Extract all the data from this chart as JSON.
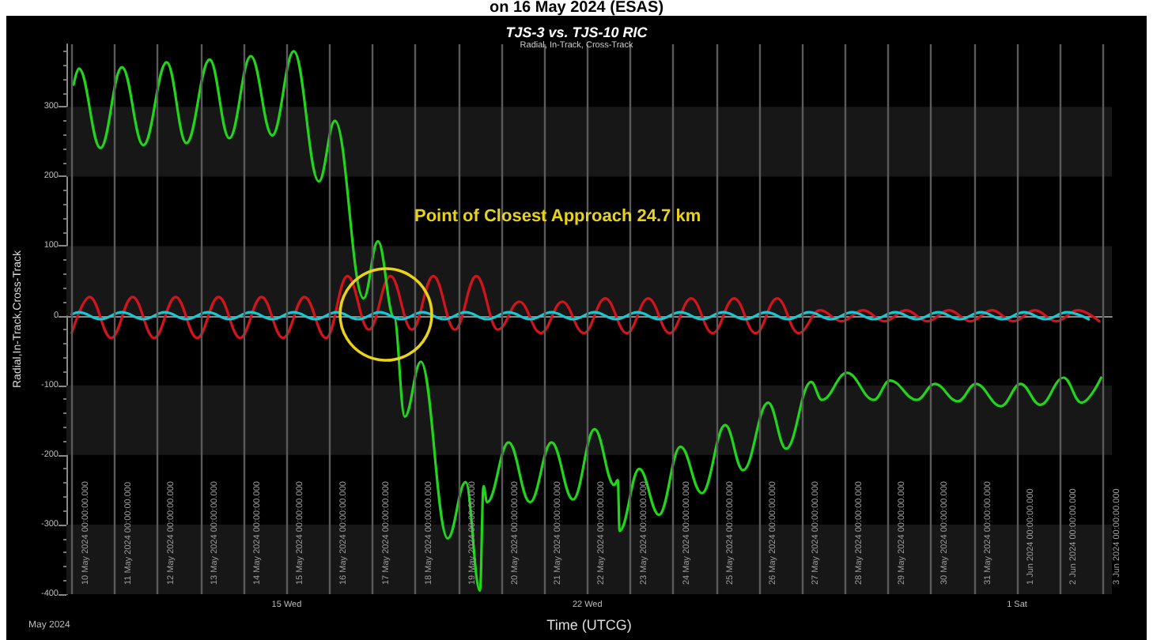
{
  "chart_data": {
    "type": "line",
    "title": "TJS-3 vs. TJS-10 RIC",
    "subtitle": "Radial, In-Track, Cross-Track",
    "xlabel": "Time (UTCG)",
    "ylabel": "Radial,In-Track,Cross-Track",
    "annotations": [
      "on 16 May 2024 (ESAS)",
      "May 2024",
      "Point of Closest Approach 24.7 km"
    ],
    "bands": [
      {
        "axis": "y",
        "from": -400,
        "to": -300,
        "color": "#171717"
      },
      {
        "axis": "y",
        "from": -200,
        "to": -100,
        "color": "#171717"
      },
      {
        "axis": "y",
        "from": 0,
        "to": 100,
        "color": "#171717"
      },
      {
        "axis": "y",
        "from": 200,
        "to": 300,
        "color": "#171717"
      }
    ],
    "xlim": [
      "2024-05-09T21:00",
      "2024-06-03T05:00"
    ],
    "ylim": [
      -400,
      390
    ],
    "xticks": [
      {
        "value": "2024-05-10",
        "label": null
      },
      {
        "value": "2024-05-11",
        "label": null
      },
      {
        "value": "2024-05-12",
        "label": null
      },
      {
        "value": "2024-05-13",
        "label": null
      },
      {
        "value": "2024-05-14",
        "label": null
      },
      {
        "value": "2024-05-15",
        "label": "15 Wed"
      },
      {
        "value": "2024-05-16",
        "label": null
      },
      {
        "value": "2024-05-17",
        "label": null
      },
      {
        "value": "2024-05-18",
        "label": null
      },
      {
        "value": "2024-05-19",
        "label": null
      },
      {
        "value": "2024-05-20",
        "label": null
      },
      {
        "value": "2024-05-21",
        "label": null
      },
      {
        "value": "2024-05-22",
        "label": "22 Wed"
      },
      {
        "value": "2024-05-23",
        "label": null
      },
      {
        "value": "2024-05-24",
        "label": null
      },
      {
        "value": "2024-05-25",
        "label": null
      },
      {
        "value": "2024-05-26",
        "label": null
      },
      {
        "value": "2024-05-27",
        "label": null
      },
      {
        "value": "2024-05-28",
        "label": null
      },
      {
        "value": "2024-05-29",
        "label": null
      },
      {
        "value": "2024-05-30",
        "label": null
      },
      {
        "value": "2024-05-31",
        "label": null
      },
      {
        "value": "2024-06-01",
        "label": "1 Sat"
      },
      {
        "value": "2024-06-02",
        "label": null
      },
      {
        "value": "2024-06-03",
        "label": null
      }
    ],
    "yticks": [
      -400,
      -300,
      -200,
      -100,
      0,
      100,
      200,
      300
    ],
    "series": [
      {
        "color": "#d4141c",
        "x": [
          "2024-05-10T00:00",
          "2024-05-10T10:00",
          "2024-05-10T22:00",
          "2024-05-11T10:00",
          "2024-05-11T22:00",
          "2024-05-12T10:00",
          "2024-05-12T22:00",
          "2024-05-13T10:00",
          "2024-05-13T22:00",
          "2024-05-14T10:00",
          "2024-05-14T22:00",
          "2024-05-15T10:00",
          "2024-05-15T22:00",
          "2024-05-16T10:00",
          "2024-05-16T22:00",
          "2024-05-17T10:00",
          "2024-05-17T22:00",
          "2024-05-18T10:00",
          "2024-05-18T22:00",
          "2024-05-19T10:00",
          "2024-05-19T22:00",
          "2024-05-20T10:00",
          "2024-05-20T22:00",
          "2024-05-21T10:00",
          "2024-05-21T22:00",
          "2024-05-22T10:00",
          "2024-05-22T22:00",
          "2024-05-23T10:00",
          "2024-05-23T22:00",
          "2024-05-24T10:00",
          "2024-05-24T22:00",
          "2024-05-25T10:00",
          "2024-05-25T22:00",
          "2024-05-26T10:00",
          "2024-05-26T22:00",
          "2024-05-27T10:00",
          "2024-05-27T22:00",
          "2024-05-28T10:00",
          "2024-05-28T22:00",
          "2024-05-29T10:00",
          "2024-05-29T22:00",
          "2024-05-30T10:00",
          "2024-05-30T22:00",
          "2024-05-31T10:00",
          "2024-05-31T22:00",
          "2024-06-01T10:00",
          "2024-06-01T22:00",
          "2024-06-02T10:00",
          "2024-06-02T22:00"
        ],
        "values": [
          -25,
          27,
          -32,
          27,
          -32,
          27,
          -32,
          27,
          -32,
          27,
          -32,
          27,
          -32,
          57,
          -20,
          57,
          -20,
          57,
          -20,
          57,
          -20,
          20,
          -25,
          20,
          -25,
          25,
          -25,
          25,
          -25,
          25,
          -25,
          25,
          -25,
          25,
          -25,
          8,
          -8,
          8,
          -8,
          8,
          -8,
          8,
          -8,
          8,
          -8,
          8,
          -8,
          8,
          -8
        ]
      },
      {
        "color": "#21d51a",
        "x": [
          "2024-05-10T01:00",
          "2024-05-10T04:00",
          "2024-05-10T16:00",
          "2024-05-11T04:00",
          "2024-05-11T16:00",
          "2024-05-12T05:00",
          "2024-05-12T16:00",
          "2024-05-13T05:00",
          "2024-05-13T16:00",
          "2024-05-14T04:00",
          "2024-05-14T16:00",
          "2024-05-15T04:00",
          "2024-05-15T18:00",
          "2024-05-16T03:00",
          "2024-05-16T19:00",
          "2024-05-17T03:00",
          "2024-05-17T12:00",
          "2024-05-17T18:00",
          "2024-05-18T03:00",
          "2024-05-18T18:00",
          "2024-05-19T04:00",
          "2024-05-19T12:00",
          "2024-05-19T14:00",
          "2024-05-19T16:00",
          "2024-05-20T04:00",
          "2024-05-20T16:00",
          "2024-05-21T04:00",
          "2024-05-21T16:00",
          "2024-05-22T04:00",
          "2024-05-22T15:00",
          "2024-05-22T17:00",
          "2024-05-22T18:00",
          "2024-05-23T05:00",
          "2024-05-23T16:00",
          "2024-05-24T04:00",
          "2024-05-24T16:00",
          "2024-05-25T05:00",
          "2024-05-25T15:00",
          "2024-05-26T05:00",
          "2024-05-26T15:00",
          "2024-05-27T05:00",
          "2024-05-27T11:00",
          "2024-05-28T01:00",
          "2024-05-28T16:00",
          "2024-05-29T01:00",
          "2024-05-29T16:00",
          "2024-05-30T02:00",
          "2024-05-30T15:00",
          "2024-05-31T01:00",
          "2024-05-31T15:00",
          "2024-06-01T02:00",
          "2024-06-01T13:00",
          "2024-06-02T02:00",
          "2024-06-02T12:00",
          "2024-06-02T23:00"
        ],
        "values": [
          332,
          355,
          241,
          357,
          245,
          364,
          248,
          368,
          255,
          373,
          259,
          380,
          193,
          280,
          25,
          107,
          -2,
          -145,
          -66,
          -320,
          -239,
          -395,
          -245,
          -268,
          -182,
          -268,
          -182,
          -264,
          -163,
          -243,
          -236,
          -309,
          -220,
          -286,
          -188,
          -255,
          -157,
          -222,
          -125,
          -191,
          -95,
          -121,
          -82,
          -121,
          -93,
          -121,
          -98,
          -123,
          -98,
          -130,
          -98,
          -128,
          -89,
          -125,
          -89
        ]
      },
      {
        "color": "#17c9d2",
        "x": [
          "2024-05-10T00:00",
          "2024-05-10T04:00",
          "2024-05-10T16:00",
          "2024-05-11T04:00",
          "2024-05-11T16:00",
          "2024-05-12T04:00",
          "2024-05-12T16:00",
          "2024-05-13T04:00",
          "2024-05-13T16:00",
          "2024-05-14T04:00",
          "2024-05-14T16:00",
          "2024-05-15T04:00",
          "2024-05-15T16:00",
          "2024-05-16T04:00",
          "2024-05-16T16:00",
          "2024-05-17T04:00",
          "2024-05-17T16:00",
          "2024-05-18T04:00",
          "2024-05-18T16:00",
          "2024-05-19T04:00",
          "2024-05-19T16:00",
          "2024-05-20T04:00",
          "2024-05-20T16:00",
          "2024-05-21T04:00",
          "2024-05-21T16:00",
          "2024-05-22T04:00",
          "2024-05-22T16:00",
          "2024-05-23T04:00",
          "2024-05-23T16:00",
          "2024-05-24T04:00",
          "2024-05-24T16:00",
          "2024-05-25T04:00",
          "2024-05-25T16:00",
          "2024-05-26T04:00",
          "2024-05-26T16:00",
          "2024-05-27T04:00",
          "2024-05-27T16:00",
          "2024-05-28T04:00",
          "2024-05-28T16:00",
          "2024-05-29T04:00",
          "2024-05-29T16:00",
          "2024-05-30T04:00",
          "2024-05-30T16:00",
          "2024-05-31T04:00",
          "2024-05-31T16:00",
          "2024-06-01T04:00",
          "2024-06-01T16:00",
          "2024-06-02T04:00",
          "2024-06-02T16:00"
        ],
        "values": [
          2,
          5,
          -5,
          5,
          -5,
          5,
          -5,
          5,
          -5,
          5,
          -5,
          5,
          -5,
          5,
          -5,
          5,
          -5,
          5,
          -5,
          5,
          -5,
          5,
          -5,
          5,
          -5,
          5,
          -5,
          5,
          -5,
          5,
          -5,
          5,
          -5,
          5,
          -5,
          5,
          -5,
          5,
          -5,
          5,
          -5,
          5,
          -5,
          5,
          -5,
          5,
          -5,
          5,
          -5
        ]
      }
    ],
    "ref_lines": [
      {
        "axis": "x",
        "value": "2024-05-10",
        "label": "10 May 2024 00:00:00.000",
        "color": "#5a5a5a"
      },
      {
        "axis": "x",
        "value": "2024-05-11",
        "label": "11 May 2024 00:00:00.000",
        "color": "#5a5a5a"
      },
      {
        "axis": "x",
        "value": "2024-05-12",
        "label": "12 May 2024 00:00:00.000",
        "color": "#5a5a5a"
      },
      {
        "axis": "x",
        "value": "2024-05-13",
        "label": "13 May 2024 00:00:00.000",
        "color": "#5a5a5a"
      },
      {
        "axis": "x",
        "value": "2024-05-14",
        "label": "14 May 2024 00:00:00.000",
        "color": "#5a5a5a"
      },
      {
        "axis": "x",
        "value": "2024-05-15",
        "label": "15 May 2024 00:00:00.000",
        "color": "#5a5a5a"
      },
      {
        "axis": "x",
        "value": "2024-05-16",
        "label": "16 May 2024 00:00:00.000",
        "color": "#5a5a5a"
      },
      {
        "axis": "x",
        "value": "2024-05-17",
        "label": "17 May 2024 00:00:00.000",
        "color": "#5a5a5a"
      },
      {
        "axis": "x",
        "value": "2024-05-18",
        "label": "18 May 2024 00:00:00.000",
        "color": "#5a5a5a"
      },
      {
        "axis": "x",
        "value": "2024-05-19",
        "label": "19 May 2024 00:00:00.000",
        "color": "#5a5a5a"
      },
      {
        "axis": "x",
        "value": "2024-05-20",
        "label": "20 May 2024 00:00:00.000",
        "color": "#5a5a5a"
      },
      {
        "axis": "x",
        "value": "2024-05-21",
        "label": "21 May 2024 00:00:00.000",
        "color": "#5a5a5a"
      },
      {
        "axis": "x",
        "value": "2024-05-22",
        "label": "22 May 2024 00:00:00.000",
        "color": "#5a5a5a"
      },
      {
        "axis": "x",
        "value": "2024-05-23",
        "label": "23 May 2024 00:00:00.000",
        "color": "#5a5a5a"
      },
      {
        "axis": "x",
        "value": "2024-05-24",
        "label": "24 May 2024 00:00:00.000",
        "color": "#5a5a5a"
      },
      {
        "axis": "x",
        "value": "2024-05-25",
        "label": "25 May 2024 00:00:00.000",
        "color": "#5a5a5a"
      },
      {
        "axis": "x",
        "value": "2024-05-26",
        "label": "26 May 2024 00:00:00.000",
        "color": "#5a5a5a"
      },
      {
        "axis": "x",
        "value": "2024-05-27",
        "label": "27 May 2024 00:00:00.000",
        "color": "#5a5a5a"
      },
      {
        "axis": "x",
        "value": "2024-05-28",
        "label": "28 May 2024 00:00:00.000",
        "color": "#5a5a5a"
      },
      {
        "axis": "x",
        "value": "2024-05-29",
        "label": "29 May 2024 00:00:00.000",
        "color": "#5a5a5a"
      },
      {
        "axis": "x",
        "value": "2024-05-30",
        "label": "30 May 2024 00:00:00.000",
        "color": "#5a5a5a"
      },
      {
        "axis": "x",
        "value": "2024-05-31",
        "label": "31 May 2024 00:00:00.000",
        "color": "#5a5a5a"
      },
      {
        "axis": "x",
        "value": "2024-06-01",
        "label": "1 Jun 2024 00:00:00.000",
        "color": "#5a5a5a"
      },
      {
        "axis": "x",
        "value": "2024-06-02",
        "label": "2 Jun 2024 00:00:00.000",
        "color": "#5a5a5a"
      },
      {
        "axis": "x",
        "value": "2024-06-03",
        "label": "3 Jun 2024 00:00:00.000",
        "color": "#5a5a5a"
      }
    ]
  }
}
